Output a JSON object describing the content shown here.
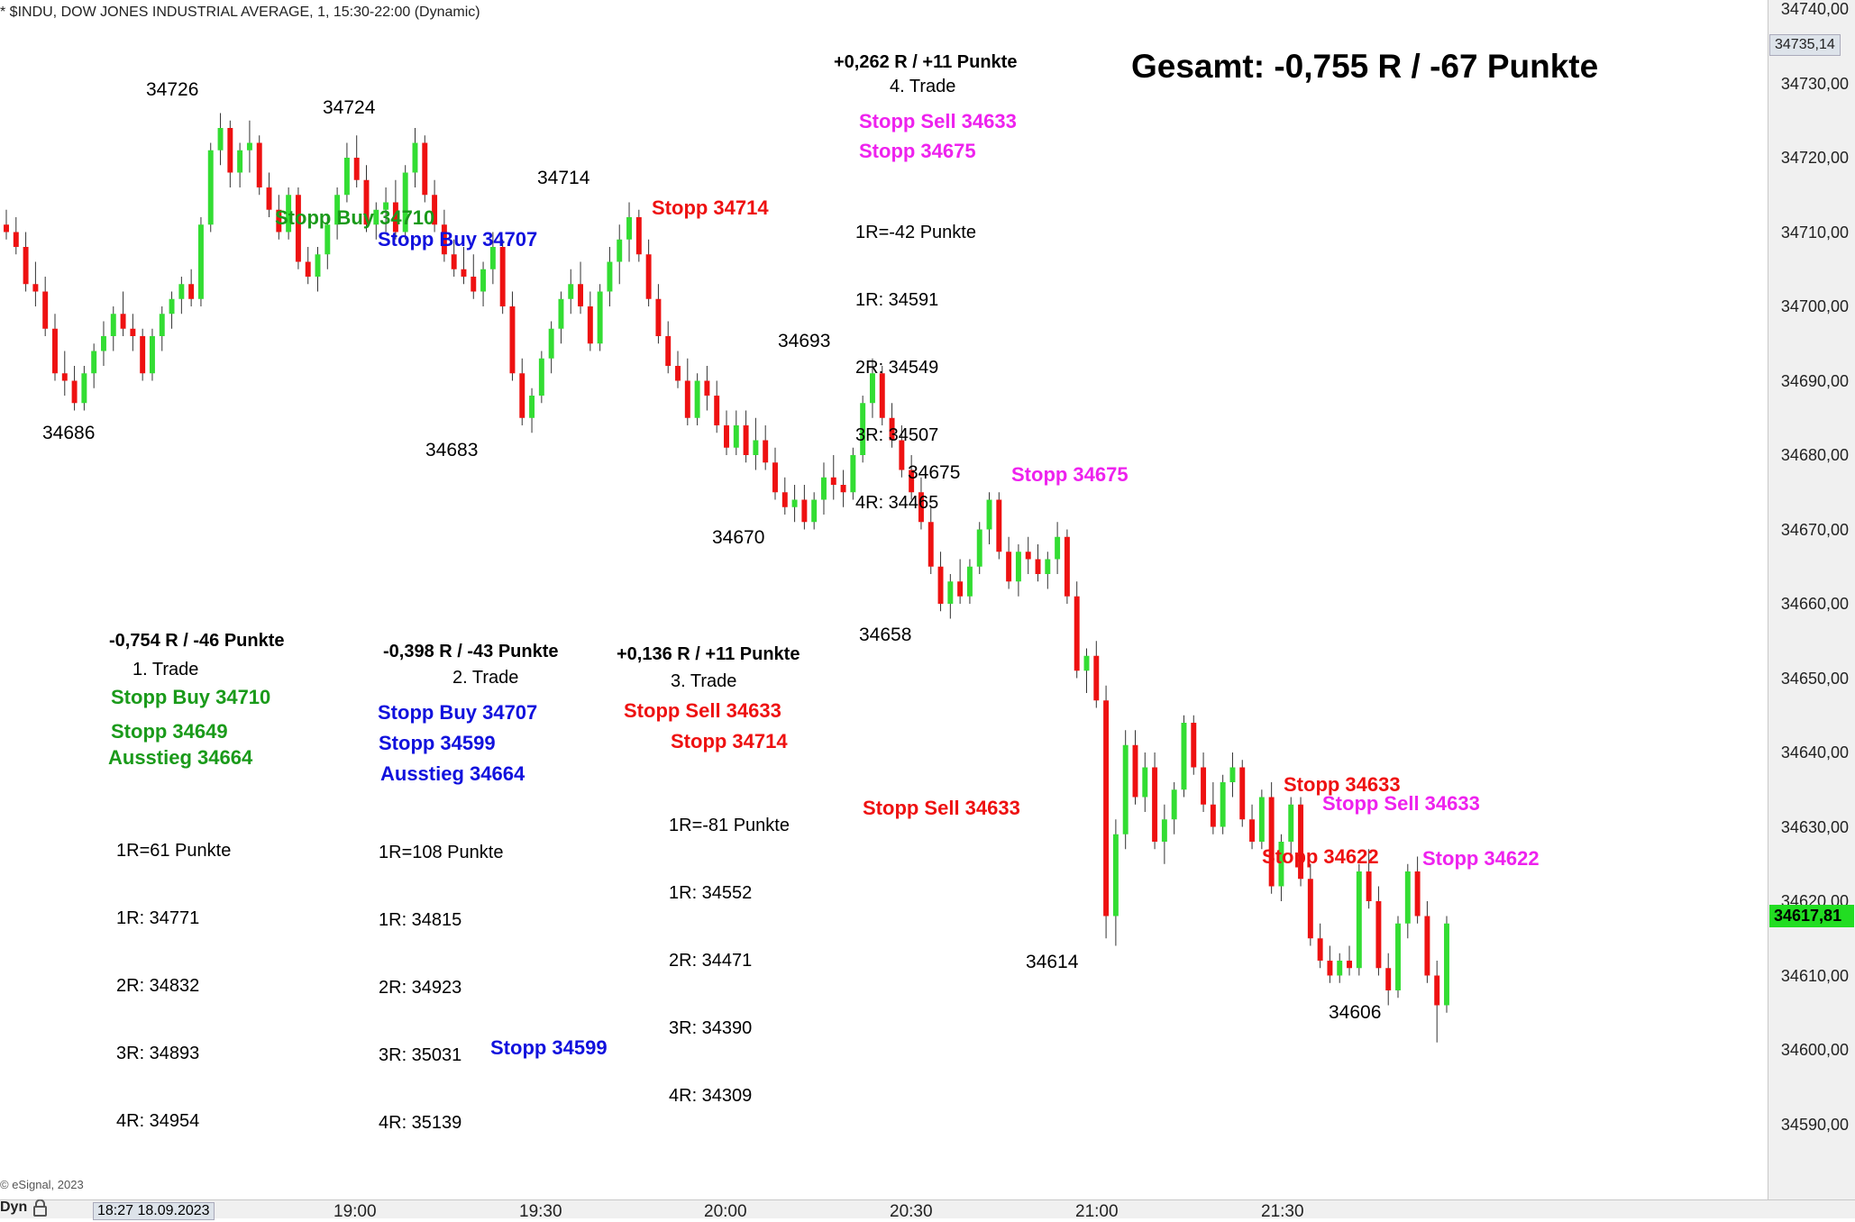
{
  "header": {
    "title": "* $INDU, DOW JONES INDUSTRIAL AVERAGE, 1, 15:30-22:00 (Dynamic)"
  },
  "summary": "Gesamt: -0,755 R / -67 Punkte",
  "colors": {
    "up": "#33dd33",
    "down": "#ee1111",
    "green_text": "#1a9a1a",
    "blue_text": "#1111dd",
    "red_text": "#ee1111",
    "magenta_text": "#ee22ee",
    "current_tag": "#22dd22"
  },
  "price_labels": [
    "34726",
    "34724",
    "34714",
    "34686",
    "34683",
    "34693",
    "34670",
    "34675",
    "34658",
    "34614",
    "34606"
  ],
  "trades": [
    {
      "result": "-0,754 R / -46 Punkte",
      "name": "1. Trade",
      "orders": [
        "Stopp Buy 34710",
        "Stopp 34649",
        "Ausstieg 34664"
      ],
      "levels": [
        "1R=61 Punkte",
        "1R: 34771",
        "2R: 34832",
        "3R: 34893",
        "4R: 34954"
      ]
    },
    {
      "result": "-0,398 R / -43 Punkte",
      "name": "2. Trade",
      "orders": [
        "Stopp Buy 34707",
        "Stopp 34599",
        "Ausstieg 34664"
      ],
      "levels": [
        "1R=108 Punkte",
        "1R: 34815",
        "2R: 34923",
        "3R: 35031",
        "4R: 35139"
      ]
    },
    {
      "result": "+0,136 R / +11 Punkte",
      "name": "3. Trade",
      "orders": [
        "Stopp Sell 34633",
        "Stopp 34714"
      ],
      "levels": [
        "1R=-81 Punkte",
        "1R: 34552",
        "2R: 34471",
        "3R: 34390",
        "4R: 34309"
      ]
    },
    {
      "result": "+0,262 R / +11 Punkte",
      "name": "4. Trade",
      "orders": [
        "Stopp Sell 34633",
        "Stopp 34675"
      ],
      "levels": [
        "1R=-42 Punkte",
        "1R: 34591",
        "2R: 34549",
        "3R: 34507",
        "4R: 34465"
      ]
    }
  ],
  "chart_annotations": {
    "stopp_buy_34710": "Stopp Buy 34710",
    "stopp_buy_34707": "Stopp Buy 34707",
    "stopp_34714": "Stopp 34714",
    "stopp_34675": "Stopp 34675",
    "stopp_sell_34633_red": "Stopp Sell 34633",
    "stopp_34633": "Stopp 34633",
    "stopp_sell_34633_magenta": "Stopp Sell 34633",
    "stopp_34622_red": "Stopp 34622",
    "stopp_34622_magenta": "Stopp 34622",
    "stopp_34599": "Stopp 34599"
  },
  "y_axis": {
    "ticks": [
      "34740,00",
      "34730,00",
      "34720,00",
      "34710,00",
      "34700,00",
      "34690,00",
      "34680,00",
      "34670,00",
      "34660,00",
      "34650,00",
      "34640,00",
      "34630,00",
      "34620,00",
      "34610,00",
      "34600,00",
      "34590,00"
    ],
    "high_tag": "34735,14",
    "current_tag": "34617,81"
  },
  "x_axis": {
    "start_tag": "18:27 18.09.2023",
    "ticks": [
      "19:00",
      "19:30",
      "20:00",
      "20:30",
      "21:00",
      "21:30"
    ]
  },
  "footer": {
    "copyright": "© eSignal, 2023",
    "mode": "Dyn"
  },
  "chart_data": {
    "type": "candlestick",
    "title": "$INDU, DOW JONES INDUSTRIAL AVERAGE, 1, 15:30-22:00 (Dynamic)",
    "interval": "1 min",
    "ylim": [
      34585,
      34742
    ],
    "time_range": [
      "18:27",
      "21:56"
    ],
    "series": [
      {
        "name": "$INDU",
        "ohlc": [
          [
            34711,
            34713,
            34709,
            34710
          ],
          [
            34710,
            34712,
            34707,
            34708
          ],
          [
            34708,
            34710,
            34702,
            34703
          ],
          [
            34703,
            34706,
            34700,
            34702
          ],
          [
            34702,
            34704,
            34696,
            34697
          ],
          [
            34697,
            34699,
            34690,
            34691
          ],
          [
            34691,
            34694,
            34688,
            34690
          ],
          [
            34690,
            34692,
            34686,
            34687
          ],
          [
            34687,
            34692,
            34686,
            34691
          ],
          [
            34691,
            34695,
            34689,
            34694
          ],
          [
            34694,
            34698,
            34692,
            34696
          ],
          [
            34696,
            34700,
            34694,
            34699
          ],
          [
            34699,
            34702,
            34696,
            34697
          ],
          [
            34697,
            34699,
            34694,
            34696
          ],
          [
            34696,
            34697,
            34690,
            34691
          ],
          [
            34691,
            34697,
            34690,
            34696
          ],
          [
            34696,
            34700,
            34694,
            34699
          ],
          [
            34699,
            34702,
            34697,
            34701
          ],
          [
            34701,
            34704,
            34699,
            34703
          ],
          [
            34703,
            34705,
            34700,
            34701
          ],
          [
            34701,
            34712,
            34700,
            34711
          ],
          [
            34711,
            34722,
            34710,
            34721
          ],
          [
            34721,
            34726,
            34719,
            34724
          ],
          [
            34724,
            34725,
            34716,
            34718
          ],
          [
            34718,
            34722,
            34716,
            34721
          ],
          [
            34721,
            34725,
            34718,
            34722
          ],
          [
            34722,
            34723,
            34715,
            34716
          ],
          [
            34716,
            34718,
            34712,
            34713
          ],
          [
            34713,
            34715,
            34709,
            34710
          ],
          [
            34710,
            34716,
            34709,
            34715
          ],
          [
            34715,
            34716,
            34705,
            34706
          ],
          [
            34706,
            34708,
            34703,
            34704
          ],
          [
            34704,
            34708,
            34702,
            34707
          ],
          [
            34707,
            34712,
            34705,
            34711
          ],
          [
            34711,
            34716,
            34709,
            34715
          ],
          [
            34715,
            34722,
            34714,
            34720
          ],
          [
            34720,
            34723,
            34716,
            34717
          ],
          [
            34717,
            34719,
            34710,
            34711
          ],
          [
            34711,
            34714,
            34709,
            34713
          ],
          [
            34713,
            34716,
            34710,
            34714
          ],
          [
            34714,
            34717,
            34709,
            34710
          ],
          [
            34710,
            34719,
            34709,
            34718
          ],
          [
            34718,
            34724,
            34716,
            34722
          ],
          [
            34722,
            34723,
            34714,
            34715
          ],
          [
            34715,
            34717,
            34710,
            34711
          ],
          [
            34711,
            34713,
            34706,
            34707
          ],
          [
            34707,
            34709,
            34704,
            34705
          ],
          [
            34705,
            34708,
            34703,
            34704
          ],
          [
            34704,
            34707,
            34701,
            34702
          ],
          [
            34702,
            34706,
            34700,
            34705
          ],
          [
            34705,
            34710,
            34703,
            34708
          ],
          [
            34708,
            34709,
            34699,
            34700
          ],
          [
            34700,
            34702,
            34690,
            34691
          ],
          [
            34691,
            34693,
            34684,
            34685
          ],
          [
            34685,
            34689,
            34683,
            34688
          ],
          [
            34688,
            34694,
            34687,
            34693
          ],
          [
            34693,
            34698,
            34691,
            34697
          ],
          [
            34697,
            34702,
            34695,
            34701
          ],
          [
            34701,
            34705,
            34699,
            34703
          ],
          [
            34703,
            34706,
            34699,
            34700
          ],
          [
            34700,
            34702,
            34694,
            34695
          ],
          [
            34695,
            34703,
            34694,
            34702
          ],
          [
            34702,
            34708,
            34700,
            34706
          ],
          [
            34706,
            34711,
            34703,
            34709
          ],
          [
            34709,
            34714,
            34706,
            34712
          ],
          [
            34712,
            34713,
            34706,
            34707
          ],
          [
            34707,
            34709,
            34700,
            34701
          ],
          [
            34701,
            34703,
            34695,
            34696
          ],
          [
            34696,
            34698,
            34691,
            34692
          ],
          [
            34692,
            34694,
            34689,
            34690
          ],
          [
            34690,
            34693,
            34684,
            34685
          ],
          [
            34685,
            34691,
            34684,
            34690
          ],
          [
            34690,
            34692,
            34686,
            34688
          ],
          [
            34688,
            34690,
            34683,
            34684
          ],
          [
            34684,
            34686,
            34680,
            34681
          ],
          [
            34681,
            34686,
            34680,
            34684
          ],
          [
            34684,
            34686,
            34679,
            34680
          ],
          [
            34680,
            34685,
            34678,
            34682
          ],
          [
            34682,
            34684,
            34678,
            34679
          ],
          [
            34679,
            34681,
            34674,
            34675
          ],
          [
            34675,
            34677,
            34672,
            34673
          ],
          [
            34673,
            34676,
            34671,
            34674
          ],
          [
            34674,
            34676,
            34670,
            34671
          ],
          [
            34671,
            34675,
            34670,
            34674
          ],
          [
            34674,
            34679,
            34672,
            34677
          ],
          [
            34677,
            34680,
            34674,
            34676
          ],
          [
            34676,
            34678,
            34673,
            34675
          ],
          [
            34675,
            34681,
            34674,
            34680
          ],
          [
            34680,
            34688,
            34679,
            34687
          ],
          [
            34687,
            34693,
            34685,
            34691
          ],
          [
            34691,
            34692,
            34684,
            34685
          ],
          [
            34685,
            34687,
            34681,
            34682
          ],
          [
            34682,
            34684,
            34677,
            34678
          ],
          [
            34678,
            34680,
            34674,
            34675
          ],
          [
            34675,
            34677,
            34670,
            34671
          ],
          [
            34671,
            34673,
            34664,
            34665
          ],
          [
            34665,
            34667,
            34659,
            34660
          ],
          [
            34660,
            34664,
            34658,
            34663
          ],
          [
            34663,
            34666,
            34660,
            34661
          ],
          [
            34661,
            34666,
            34660,
            34665
          ],
          [
            34665,
            34671,
            34664,
            34670
          ],
          [
            34670,
            34675,
            34668,
            34674
          ],
          [
            34674,
            34675,
            34666,
            34667
          ],
          [
            34667,
            34669,
            34662,
            34663
          ],
          [
            34663,
            34668,
            34661,
            34667
          ],
          [
            34667,
            34669,
            34664,
            34666
          ],
          [
            34666,
            34668,
            34663,
            34664
          ],
          [
            34664,
            34667,
            34662,
            34666
          ],
          [
            34666,
            34671,
            34664,
            34669
          ],
          [
            34669,
            34670,
            34660,
            34661
          ],
          [
            34661,
            34663,
            34650,
            34651
          ],
          [
            34651,
            34654,
            34648,
            34653
          ],
          [
            34653,
            34655,
            34646,
            34647
          ],
          [
            34647,
            34649,
            34615,
            34618
          ],
          [
            34618,
            34631,
            34614,
            34629
          ],
          [
            34629,
            34643,
            34627,
            34641
          ],
          [
            34641,
            34643,
            34633,
            34634
          ],
          [
            34634,
            34640,
            34632,
            34638
          ],
          [
            34638,
            34640,
            34627,
            34628
          ],
          [
            34628,
            34633,
            34625,
            34631
          ],
          [
            34631,
            34636,
            34629,
            34635
          ],
          [
            34635,
            34645,
            34634,
            34644
          ],
          [
            34644,
            34645,
            34637,
            34638
          ],
          [
            34638,
            34640,
            34632,
            34633
          ],
          [
            34633,
            34636,
            34629,
            34630
          ],
          [
            34630,
            34637,
            34629,
            34636
          ],
          [
            34636,
            34640,
            34634,
            34638
          ],
          [
            34638,
            34639,
            34630,
            34631
          ],
          [
            34631,
            34633,
            34627,
            34628
          ],
          [
            34628,
            34635,
            34627,
            34634
          ],
          [
            34634,
            34636,
            34621,
            34622
          ],
          [
            34622,
            34629,
            34620,
            34628
          ],
          [
            34628,
            34634,
            34626,
            34633
          ],
          [
            34633,
            34634,
            34622,
            34623
          ],
          [
            34623,
            34625,
            34614,
            34615
          ],
          [
            34615,
            34617,
            34611,
            34612
          ],
          [
            34612,
            34614,
            34609,
            34610
          ],
          [
            34610,
            34613,
            34609,
            34612
          ],
          [
            34612,
            34614,
            34610,
            34611
          ],
          [
            34611,
            34625,
            34610,
            34624
          ],
          [
            34624,
            34627,
            34619,
            34620
          ],
          [
            34620,
            34622,
            34610,
            34611
          ],
          [
            34611,
            34613,
            34606,
            34608
          ],
          [
            34608,
            34618,
            34607,
            34617
          ],
          [
            34617,
            34625,
            34615,
            34624
          ],
          [
            34624,
            34626,
            34617,
            34618
          ],
          [
            34618,
            34620,
            34609,
            34610
          ],
          [
            34610,
            34612,
            34601,
            34606
          ],
          [
            34606,
            34618,
            34605,
            34617
          ]
        ]
      }
    ]
  }
}
